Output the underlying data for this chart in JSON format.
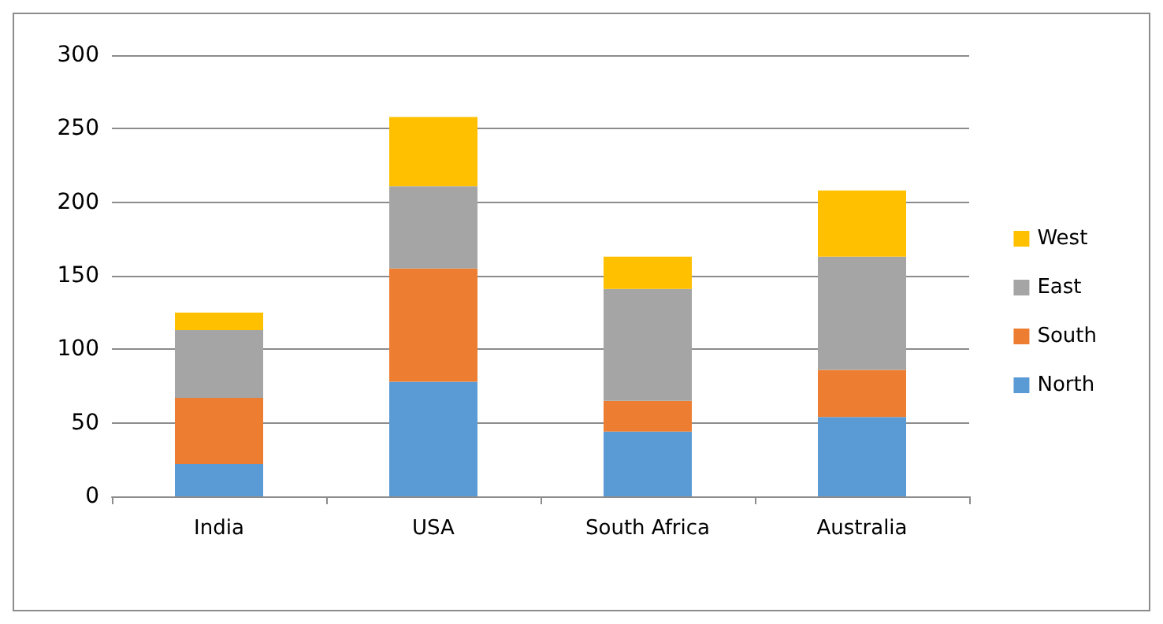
{
  "chart_data": {
    "type": "bar",
    "stacked": true,
    "categories": [
      "India",
      "USA",
      "South Africa",
      "Australia"
    ],
    "series": [
      {
        "name": "North",
        "color": "#5b9bd5",
        "values": [
          22,
          78,
          44,
          54
        ]
      },
      {
        "name": "South",
        "color": "#ed7d31",
        "values": [
          45,
          77,
          21,
          32
        ]
      },
      {
        "name": "East",
        "color": "#a5a5a5",
        "values": [
          46,
          56,
          76,
          77
        ]
      },
      {
        "name": "West",
        "color": "#ffc000",
        "values": [
          12,
          47,
          22,
          45
        ]
      }
    ],
    "ylim": [
      0,
      300
    ],
    "yticks": [
      0,
      50,
      100,
      150,
      200,
      250,
      300
    ],
    "grid": "y",
    "legend": "right"
  }
}
